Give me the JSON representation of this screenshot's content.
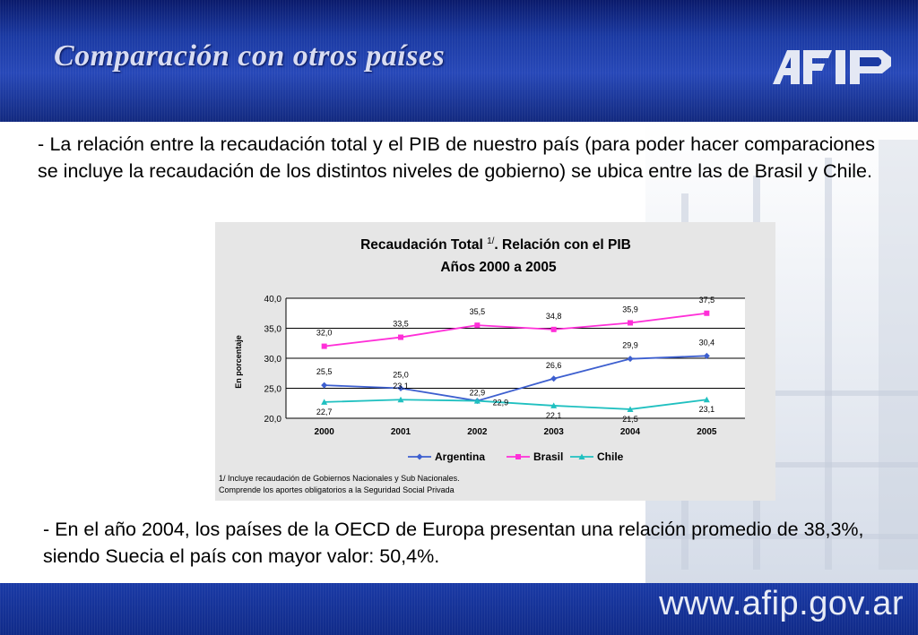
{
  "header": {
    "title": "Comparación con otros países",
    "logo_text": "AFIP",
    "colors": {
      "header_bg": "#1b3aa3",
      "title": "#d8dcf2"
    }
  },
  "paragraphs": {
    "intro": "- La relación entre la recaudación total y el PIB de nuestro país (para poder hacer comparaciones se incluye la recaudación de los distintos niveles de gobierno) se ubica entre las de Brasil y Chile.",
    "oecd": "-  En el año 2004, los países de la OECD de Europa presentan una relación promedio de 38,3%, siendo Suecia el país con mayor valor: 50,4%."
  },
  "chart_data": {
    "type": "line",
    "title_main": "Recaudación Total ",
    "title_sup": "1/",
    "title_rest": ". Relación con el PIB",
    "subtitle": "Años 2000 a 2005",
    "ylabel": "En porcentaje",
    "xlabel": "",
    "ylim": [
      20,
      40
    ],
    "y_ticks": [
      "20,0",
      "25,0",
      "30,0",
      "35,0",
      "40,0"
    ],
    "y_tick_values": [
      20,
      25,
      30,
      35,
      40
    ],
    "categories": [
      "2000",
      "2001",
      "2002",
      "2003",
      "2004",
      "2005"
    ],
    "grid": true,
    "legend_position": "bottom",
    "series": [
      {
        "name": "Argentina",
        "color": "#3d5fcf",
        "marker": "diamond",
        "values": [
          25.5,
          25.0,
          22.9,
          26.6,
          29.9,
          30.4
        ],
        "labels": [
          "25,5",
          "25,0",
          "22,9",
          "26,6",
          "29,9",
          "30,4"
        ]
      },
      {
        "name": "Brasil",
        "color": "#ff2fd8",
        "marker": "square",
        "values": [
          32.0,
          33.5,
          35.5,
          34.8,
          35.9,
          37.5
        ],
        "labels": [
          "32,0",
          "33,5",
          "35,5",
          "34,8",
          "35,9",
          "37,5"
        ]
      },
      {
        "name": "Chile",
        "color": "#20c0c0",
        "marker": "triangle",
        "values": [
          22.7,
          23.1,
          22.9,
          22.1,
          21.5,
          23.1
        ],
        "labels": [
          "22,7",
          "23,1",
          "22,9",
          "22,1",
          "21,5",
          "23,1"
        ]
      }
    ],
    "footnote_1": "1/ Incluye recaudación de Gobiernos Nacionales y Sub Nacionales.",
    "footnote_2": "Comprende los aportes obligatorios a la Seguridad Social Privada"
  },
  "footer": {
    "url": "www.afip.gov.ar"
  }
}
